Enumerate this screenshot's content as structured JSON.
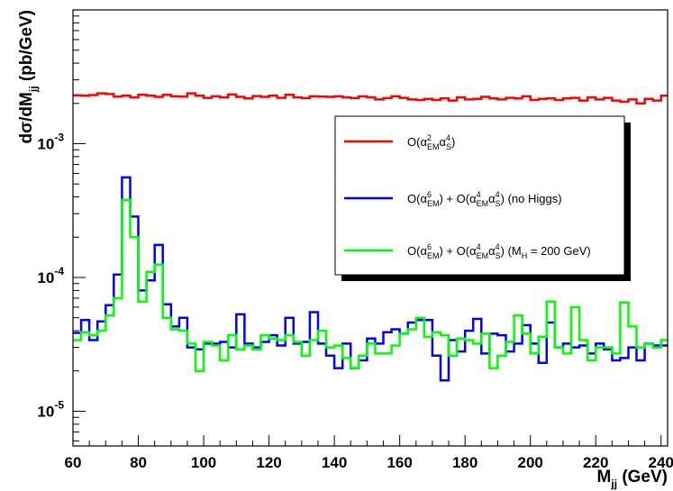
{
  "chart_data": {
    "type": "line",
    "title": "",
    "xlabel": {
      "main": "M",
      "sub": "jj",
      "unit": " (GeV)"
    },
    "ylabel": {
      "main": "dσ/dM",
      "sub": "jj",
      "unit": " (pb/GeV)"
    },
    "xlim": [
      60,
      242
    ],
    "ylim": [
      5.5e-06,
      0.01
    ],
    "yscale": "log",
    "grid": false,
    "legend_position": "top-right",
    "x_ticks": [
      "60",
      "80",
      "100",
      "120",
      "140",
      "160",
      "180",
      "200",
      "220",
      "240"
    ],
    "y_ticks": [
      {
        "value": 0.001,
        "base": "10",
        "exp": "-3"
      },
      {
        "value": 0.0001,
        "base": "10",
        "exp": "-4"
      },
      {
        "value": 1e-05,
        "base": "10",
        "exp": "-5"
      }
    ],
    "bin_start": 60,
    "bin_width": 2.5,
    "series": [
      {
        "name": "O(α²EM α⁴S)",
        "legend": {
          "base": "O(α",
          "sup1": "2",
          "sub1": "EM",
          "mid": "α",
          "sup2": "4",
          "sub2": "S",
          "tail": ")"
        },
        "color": "#ff0000",
        "values": [
          0.0023,
          0.00228,
          0.00231,
          0.00238,
          0.00235,
          0.00225,
          0.00228,
          0.00222,
          0.00232,
          0.00228,
          0.00224,
          0.00232,
          0.00226,
          0.00225,
          0.00238,
          0.00228,
          0.0022,
          0.00226,
          0.00222,
          0.00233,
          0.00224,
          0.00218,
          0.00227,
          0.00224,
          0.00228,
          0.0022,
          0.00232,
          0.00222,
          0.00219,
          0.00226,
          0.00225,
          0.00224,
          0.00226,
          0.00222,
          0.00219,
          0.00226,
          0.00222,
          0.00214,
          0.00219,
          0.00226,
          0.0022,
          0.00214,
          0.00212,
          0.00216,
          0.00212,
          0.00218,
          0.0021,
          0.00222,
          0.00214,
          0.00216,
          0.00224,
          0.00218,
          0.00214,
          0.0022,
          0.00218,
          0.00226,
          0.00212,
          0.00216,
          0.00218,
          0.00212,
          0.00218,
          0.0022,
          0.0021,
          0.00222,
          0.00214,
          0.0022,
          0.0021,
          0.00206,
          0.00214,
          0.002,
          0.00216,
          0.0021,
          0.00228
        ]
      },
      {
        "name": "O(α⁶EM) + O(α⁴EM α⁴S) (no Higgs)",
        "legend": {
          "base": "O(α",
          "sup1": "6",
          "sub1": "EM",
          "mid": ") + O(α",
          "sup2": "4",
          "sub2": "EM",
          "mid2": "α",
          "sup3": "4",
          "sub3": "S",
          "tail": ") (no Higgs)"
        },
        "color": "#0000ff",
        "values": [
          3.85e-05,
          4.8e-05,
          3.4e-05,
          4.7e-05,
          6.2e-05,
          0.000105,
          0.00056,
          0.000285,
          8e-05,
          9.5e-05,
          0.000175,
          6.3e-05,
          4.3e-05,
          5e-05,
          3e-05,
          2.9e-05,
          3.2e-05,
          3.2e-05,
          3.3e-05,
          3e-05,
          5.3e-05,
          3.2e-05,
          3e-05,
          3.3e-05,
          3.7e-05,
          3.1e-05,
          5e-05,
          3.2e-05,
          3.3e-05,
          5.5e-05,
          3.2e-05,
          2.6e-05,
          2.1e-05,
          3.2e-05,
          2.1e-05,
          2.4e-05,
          3.5e-05,
          3.2e-05,
          3.9e-05,
          4.1e-05,
          3.8e-05,
          4.6e-05,
          4.8e-05,
          4.8e-05,
          2.6e-05,
          1.7e-05,
          3.4e-05,
          2.8e-05,
          4e-05,
          4.9e-05,
          2.7e-05,
          3.8e-05,
          3.7e-05,
          2.8e-05,
          3.2e-05,
          4.4e-05,
          3.2e-05,
          2.3e-05,
          4.6e-05,
          3e-05,
          3.2e-05,
          3e-05,
          3.1e-05,
          2.7e-05,
          3.2e-05,
          2.9e-05,
          2.4e-05,
          2.5e-05,
          3e-05,
          2.4e-05,
          3.2e-05,
          3.1e-05,
          3.1e-05
        ]
      },
      {
        "name": "O(α⁶EM) + O(α⁴EM α⁴S) (MH = 200 GeV)",
        "legend": {
          "base": "O(α",
          "sup1": "6",
          "sub1": "EM",
          "mid": ") + O(α",
          "sup2": "4",
          "sub2": "EM",
          "mid2": "α",
          "sup3": "4",
          "sub3": "S",
          "tail": ") (M",
          "sub4": "H",
          "tail2": " = 200 GeV)"
        },
        "color": "#00ff00",
        "values": [
          3.4e-05,
          3.9e-05,
          3.7e-05,
          4e-05,
          5.2e-05,
          7e-05,
          0.00038,
          0.0002,
          6.6e-05,
          0.00011,
          0.000125,
          5e-05,
          4.1e-05,
          4e-05,
          3.2e-05,
          2e-05,
          3.3e-05,
          3.1e-05,
          2.4e-05,
          3.7e-05,
          2.9e-05,
          3.1e-05,
          2.9e-05,
          3.7e-05,
          3.5e-05,
          3.4e-05,
          3.7e-05,
          3.3e-05,
          2.6e-05,
          3.4e-05,
          4e-05,
          3e-05,
          3.1e-05,
          2.5e-05,
          2.1e-05,
          2.6e-05,
          3.2e-05,
          2.7e-05,
          2.7e-05,
          3.1e-05,
          3.8e-05,
          4.1e-05,
          5e-05,
          3.6e-05,
          3.9e-05,
          3.7e-05,
          2.6e-05,
          3.5e-05,
          3.4e-05,
          3.2e-05,
          3.8e-05,
          2.1e-05,
          2.6e-05,
          3.3e-05,
          5.2e-05,
          3.8e-05,
          2.7e-05,
          3.6e-05,
          6.6e-05,
          3e-05,
          2.7e-05,
          6e-05,
          3.4e-05,
          2.4e-05,
          3e-05,
          3e-05,
          2.7e-05,
          6.5e-05,
          4.3e-05,
          3e-05,
          3.2e-05,
          3e-05,
          3.4e-05
        ]
      }
    ]
  }
}
